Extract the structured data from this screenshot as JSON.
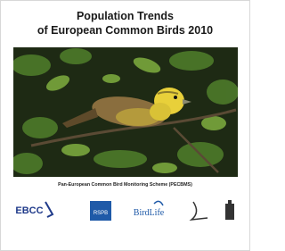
{
  "header": {
    "title_lines": [
      "Population Trends",
      "of European Common Birds 2010"
    ]
  },
  "footer": {
    "scheme": "Pan-European Common Bird Monitoring Scheme (PECBMS)",
    "logos": [
      "EBCC",
      "RSPB",
      "BirdLife"
    ]
  }
}
